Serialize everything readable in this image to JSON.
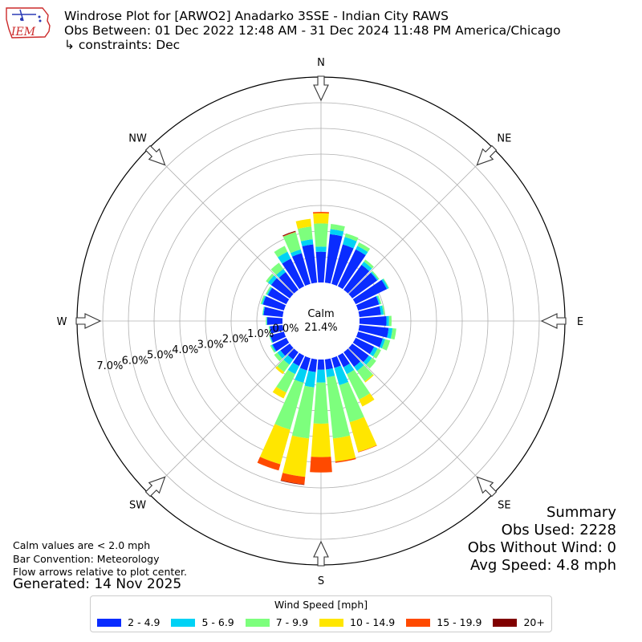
{
  "header": {
    "line1": "Windrose Plot for [ARWO2] Anadarko 3SSE - Indian City RAWS",
    "line2": "Obs Between: 01 Dec 2022 12:48 AM - 31 Dec 2024 11:48 PM America/Chicago",
    "line3": "↳ constraints: Dec",
    "logo_text": "IEM"
  },
  "notes": {
    "line1": "Calm values are < 2.0 mph",
    "line2": "Bar Convention: Meteorology",
    "line3": "Flow arrows relative to plot center.",
    "generated": "Generated: 14 Nov 2025"
  },
  "summary": {
    "title": "Summary",
    "obs_used": "Obs Used: 2228",
    "obs_without_wind": "Obs Without Wind: 0",
    "avg_speed": "Avg Speed: 4.8 mph"
  },
  "chart_data": {
    "type": "windrose",
    "calm_label": "Calm",
    "calm_value": "21.4%",
    "compass_labels": [
      "N",
      "NE",
      "E",
      "SE",
      "S",
      "SW",
      "W",
      "NW"
    ],
    "radial_ticks": [
      "0.0%",
      "1.0%",
      "2.0%",
      "3.0%",
      "4.0%",
      "5.0%",
      "6.0%",
      "7.0%"
    ],
    "radial_range": [
      0,
      8
    ],
    "legend_title": "Wind Speed [mph]",
    "bins": [
      "2 - 4.9",
      "5 - 6.9",
      "7 - 9.9",
      "10 - 14.9",
      "15 - 19.9",
      "20+"
    ],
    "colors": [
      "#0a2cff",
      "#00d2f5",
      "#7dff7d",
      "#ffe600",
      "#ff4a00",
      "#800000"
    ],
    "directions": [
      0,
      10,
      20,
      30,
      40,
      50,
      60,
      70,
      80,
      90,
      100,
      110,
      120,
      130,
      140,
      150,
      160,
      170,
      180,
      190,
      200,
      210,
      220,
      230,
      240,
      250,
      260,
      270,
      280,
      290,
      300,
      310,
      320,
      330,
      340,
      350
    ],
    "cumulative_percent": [
      [
        1.2,
        1.4,
        2.3,
        2.7,
        2.75,
        2.75
      ],
      [
        1.9,
        2.1,
        2.3,
        2.3,
        2.3,
        2.3
      ],
      [
        1.6,
        1.9,
        2.05,
        2.05,
        2.05,
        2.05
      ],
      [
        1.6,
        1.75,
        1.9,
        1.9,
        1.9,
        1.9
      ],
      [
        1.2,
        1.35,
        1.45,
        1.45,
        1.45,
        1.45
      ],
      [
        1.2,
        1.25,
        1.3,
        1.3,
        1.3,
        1.3
      ],
      [
        1.35,
        1.42,
        1.45,
        1.45,
        1.45,
        1.45
      ],
      [
        0.85,
        0.9,
        0.95,
        0.95,
        0.95,
        0.95
      ],
      [
        0.85,
        0.95,
        1.0,
        1.0,
        1.0,
        1.0
      ],
      [
        1.05,
        1.15,
        1.25,
        1.25,
        1.25,
        1.25
      ],
      [
        1.15,
        1.3,
        1.45,
        1.45,
        1.45,
        1.45
      ],
      [
        1.0,
        1.1,
        1.3,
        1.3,
        1.3,
        1.3
      ],
      [
        0.8,
        0.95,
        1.1,
        1.1,
        1.1,
        1.1
      ],
      [
        0.8,
        0.95,
        1.15,
        1.15,
        1.15,
        1.15
      ],
      [
        0.7,
        0.9,
        1.4,
        1.45,
        1.45,
        1.45
      ],
      [
        0.5,
        0.8,
        1.9,
        2.2,
        2.2,
        2.2
      ],
      [
        0.4,
        1.1,
        2.6,
        3.8,
        3.82,
        3.82
      ],
      [
        0.4,
        0.7,
        3.1,
        4.0,
        4.05,
        4.05
      ],
      [
        0.4,
        0.9,
        2.5,
        3.8,
        4.4,
        4.4
      ],
      [
        0.5,
        1.1,
        3.1,
        4.6,
        4.9,
        4.92
      ],
      [
        0.5,
        1.0,
        2.9,
        4.3,
        4.55,
        4.55
      ],
      [
        0.45,
        0.8,
        1.6,
        1.85,
        1.85,
        1.85
      ],
      [
        0.35,
        0.6,
        0.95,
        1.05,
        1.05,
        1.05
      ],
      [
        0.45,
        0.6,
        0.75,
        0.75,
        0.75,
        0.75
      ],
      [
        0.6,
        0.65,
        0.7,
        0.7,
        0.7,
        0.7
      ],
      [
        0.55,
        0.58,
        0.6,
        0.6,
        0.6,
        0.6
      ],
      [
        0.5,
        0.52,
        0.55,
        0.55,
        0.55,
        0.55
      ],
      [
        0.6,
        0.62,
        0.65,
        0.65,
        0.65,
        0.65
      ],
      [
        0.75,
        0.78,
        0.8,
        0.8,
        0.8,
        0.8
      ],
      [
        0.85,
        0.9,
        0.95,
        0.95,
        0.95,
        0.95
      ],
      [
        0.8,
        0.85,
        0.9,
        0.9,
        0.9,
        0.9
      ],
      [
        0.9,
        1.05,
        1.15,
        1.15,
        1.15,
        1.15
      ],
      [
        0.85,
        1.0,
        1.3,
        1.3,
        1.3,
        1.3
      ],
      [
        1.2,
        1.5,
        1.75,
        1.75,
        1.75,
        1.75
      ],
      [
        1.25,
        1.4,
        2.1,
        2.1,
        2.12,
        2.15
      ],
      [
        1.5,
        1.7,
        2.2,
        2.5,
        2.5,
        2.5
      ]
    ]
  }
}
